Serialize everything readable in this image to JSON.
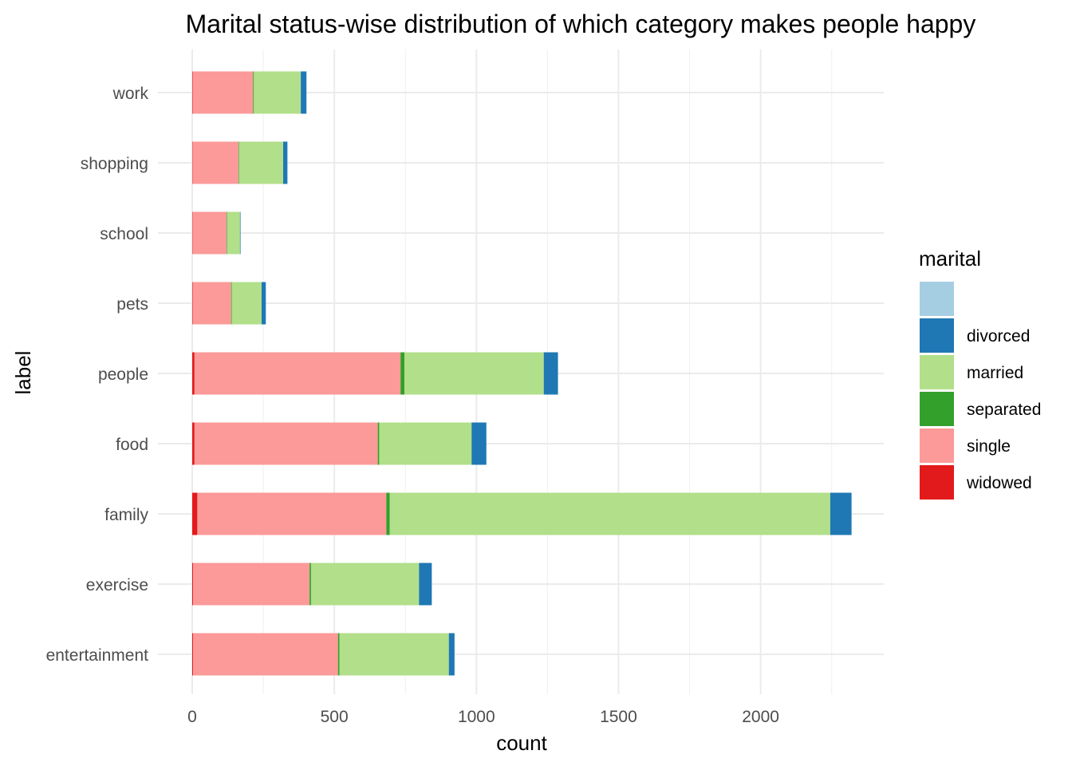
{
  "chart_data": {
    "type": "bar",
    "orientation": "horizontal",
    "stacked": true,
    "title": "Marital status-wise distribution of which category makes people happy",
    "xlabel": "count",
    "ylabel": "label",
    "categories": [
      "entertainment",
      "exercise",
      "family",
      "food",
      "people",
      "pets",
      "school",
      "shopping",
      "work"
    ],
    "xlim": [
      0,
      2400
    ],
    "x_ticks": [
      0,
      500,
      1000,
      1500,
      2000
    ],
    "grid": true,
    "legend": {
      "title": "marital",
      "position": "right",
      "entries": [
        "",
        "divorced",
        "married",
        "separated",
        "single",
        "widowed"
      ]
    },
    "series": [
      {
        "name": "widowed",
        "color": "#E31A1C",
        "values": [
          3,
          3,
          18,
          8,
          8,
          2,
          1,
          1,
          2
        ]
      },
      {
        "name": "single",
        "color": "#FB9A99",
        "values": [
          510,
          410,
          665,
          645,
          725,
          135,
          120,
          162,
          212
        ]
      },
      {
        "name": "separated",
        "color": "#33A02C",
        "values": [
          5,
          5,
          12,
          5,
          14,
          2,
          2,
          2,
          3
        ]
      },
      {
        "name": "married",
        "color": "#B2DF8A",
        "values": [
          385,
          380,
          1550,
          325,
          490,
          105,
          45,
          155,
          165
        ]
      },
      {
        "name": "divorced",
        "color": "#1F78B4",
        "values": [
          20,
          45,
          75,
          52,
          50,
          15,
          2,
          15,
          20
        ]
      },
      {
        "name": "",
        "color": "#A6CEE3",
        "values": [
          0,
          0,
          0,
          0,
          0,
          0,
          0,
          0,
          0
        ]
      }
    ]
  }
}
